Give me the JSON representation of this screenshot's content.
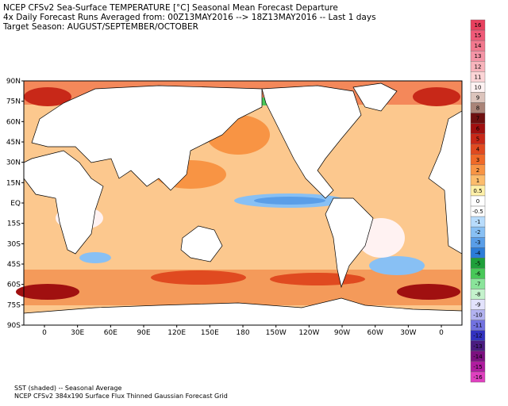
{
  "header": {
    "lines": [
      "NCEP CFSv2 Sea-Surface TEMPERATURE [°C] Seasonal Mean Forecast Departure",
      "4x Daily Forecast Runs Averaged from: 00Z13MAY2016 --> 18Z13MAY2016 -- Last 1 days",
      "Target Season: AUGUST/SEPTEMBER/OCTOBER"
    ]
  },
  "map": {
    "lat_labels": [
      "90N",
      "75N",
      "60N",
      "45N",
      "30N",
      "15N",
      "EQ",
      "15S",
      "30S",
      "45S",
      "60S",
      "75S",
      "90S"
    ],
    "lon_labels": [
      "0",
      "30E",
      "60E",
      "90E",
      "120E",
      "150E",
      "180",
      "150W",
      "120W",
      "90W",
      "60W",
      "30W",
      "0"
    ]
  },
  "colorbar": {
    "labels": [
      "16",
      "15",
      "14",
      "13",
      "12",
      "11",
      "10",
      "9",
      "8",
      "7",
      "6",
      "5",
      "4",
      "3",
      "2",
      "1",
      "0.5",
      "0",
      "-0.5",
      "-1",
      "-2",
      "-3",
      "-4",
      "-5",
      "-6",
      "-7",
      "-8",
      "-9",
      "-10",
      "-11",
      "-12",
      "-13",
      "-14",
      "-15",
      "-16"
    ],
    "colors": [
      "#e8405e",
      "#f05a78",
      "#f2788e",
      "#f494a6",
      "#f8b4bc",
      "#fcd4d6",
      "#fff2f2",
      "#dcc4bc",
      "#aa8478",
      "#6e1010",
      "#a01010",
      "#c82818",
      "#e04a20",
      "#f06a28",
      "#f89444",
      "#fcbc6c",
      "#fff0a8",
      "#ffffff",
      "#ffffff",
      "#b8dcfc",
      "#88c0f4",
      "#5a9ee8",
      "#2c7cd8",
      "#1ea03a",
      "#48c858",
      "#8ae49a",
      "#c4f2cc",
      "#e2e2fc",
      "#b2b2f0",
      "#7272e0",
      "#3232c0",
      "#4a1c80",
      "#7c1080",
      "#b01ca0",
      "#e040c0"
    ]
  },
  "footer": {
    "lines": [
      "SST (shaded) -- Seasonal Average",
      "NCEP CFSv2 384x190 Surface Flux Thinned Gaussian Forecast Grid"
    ]
  }
}
